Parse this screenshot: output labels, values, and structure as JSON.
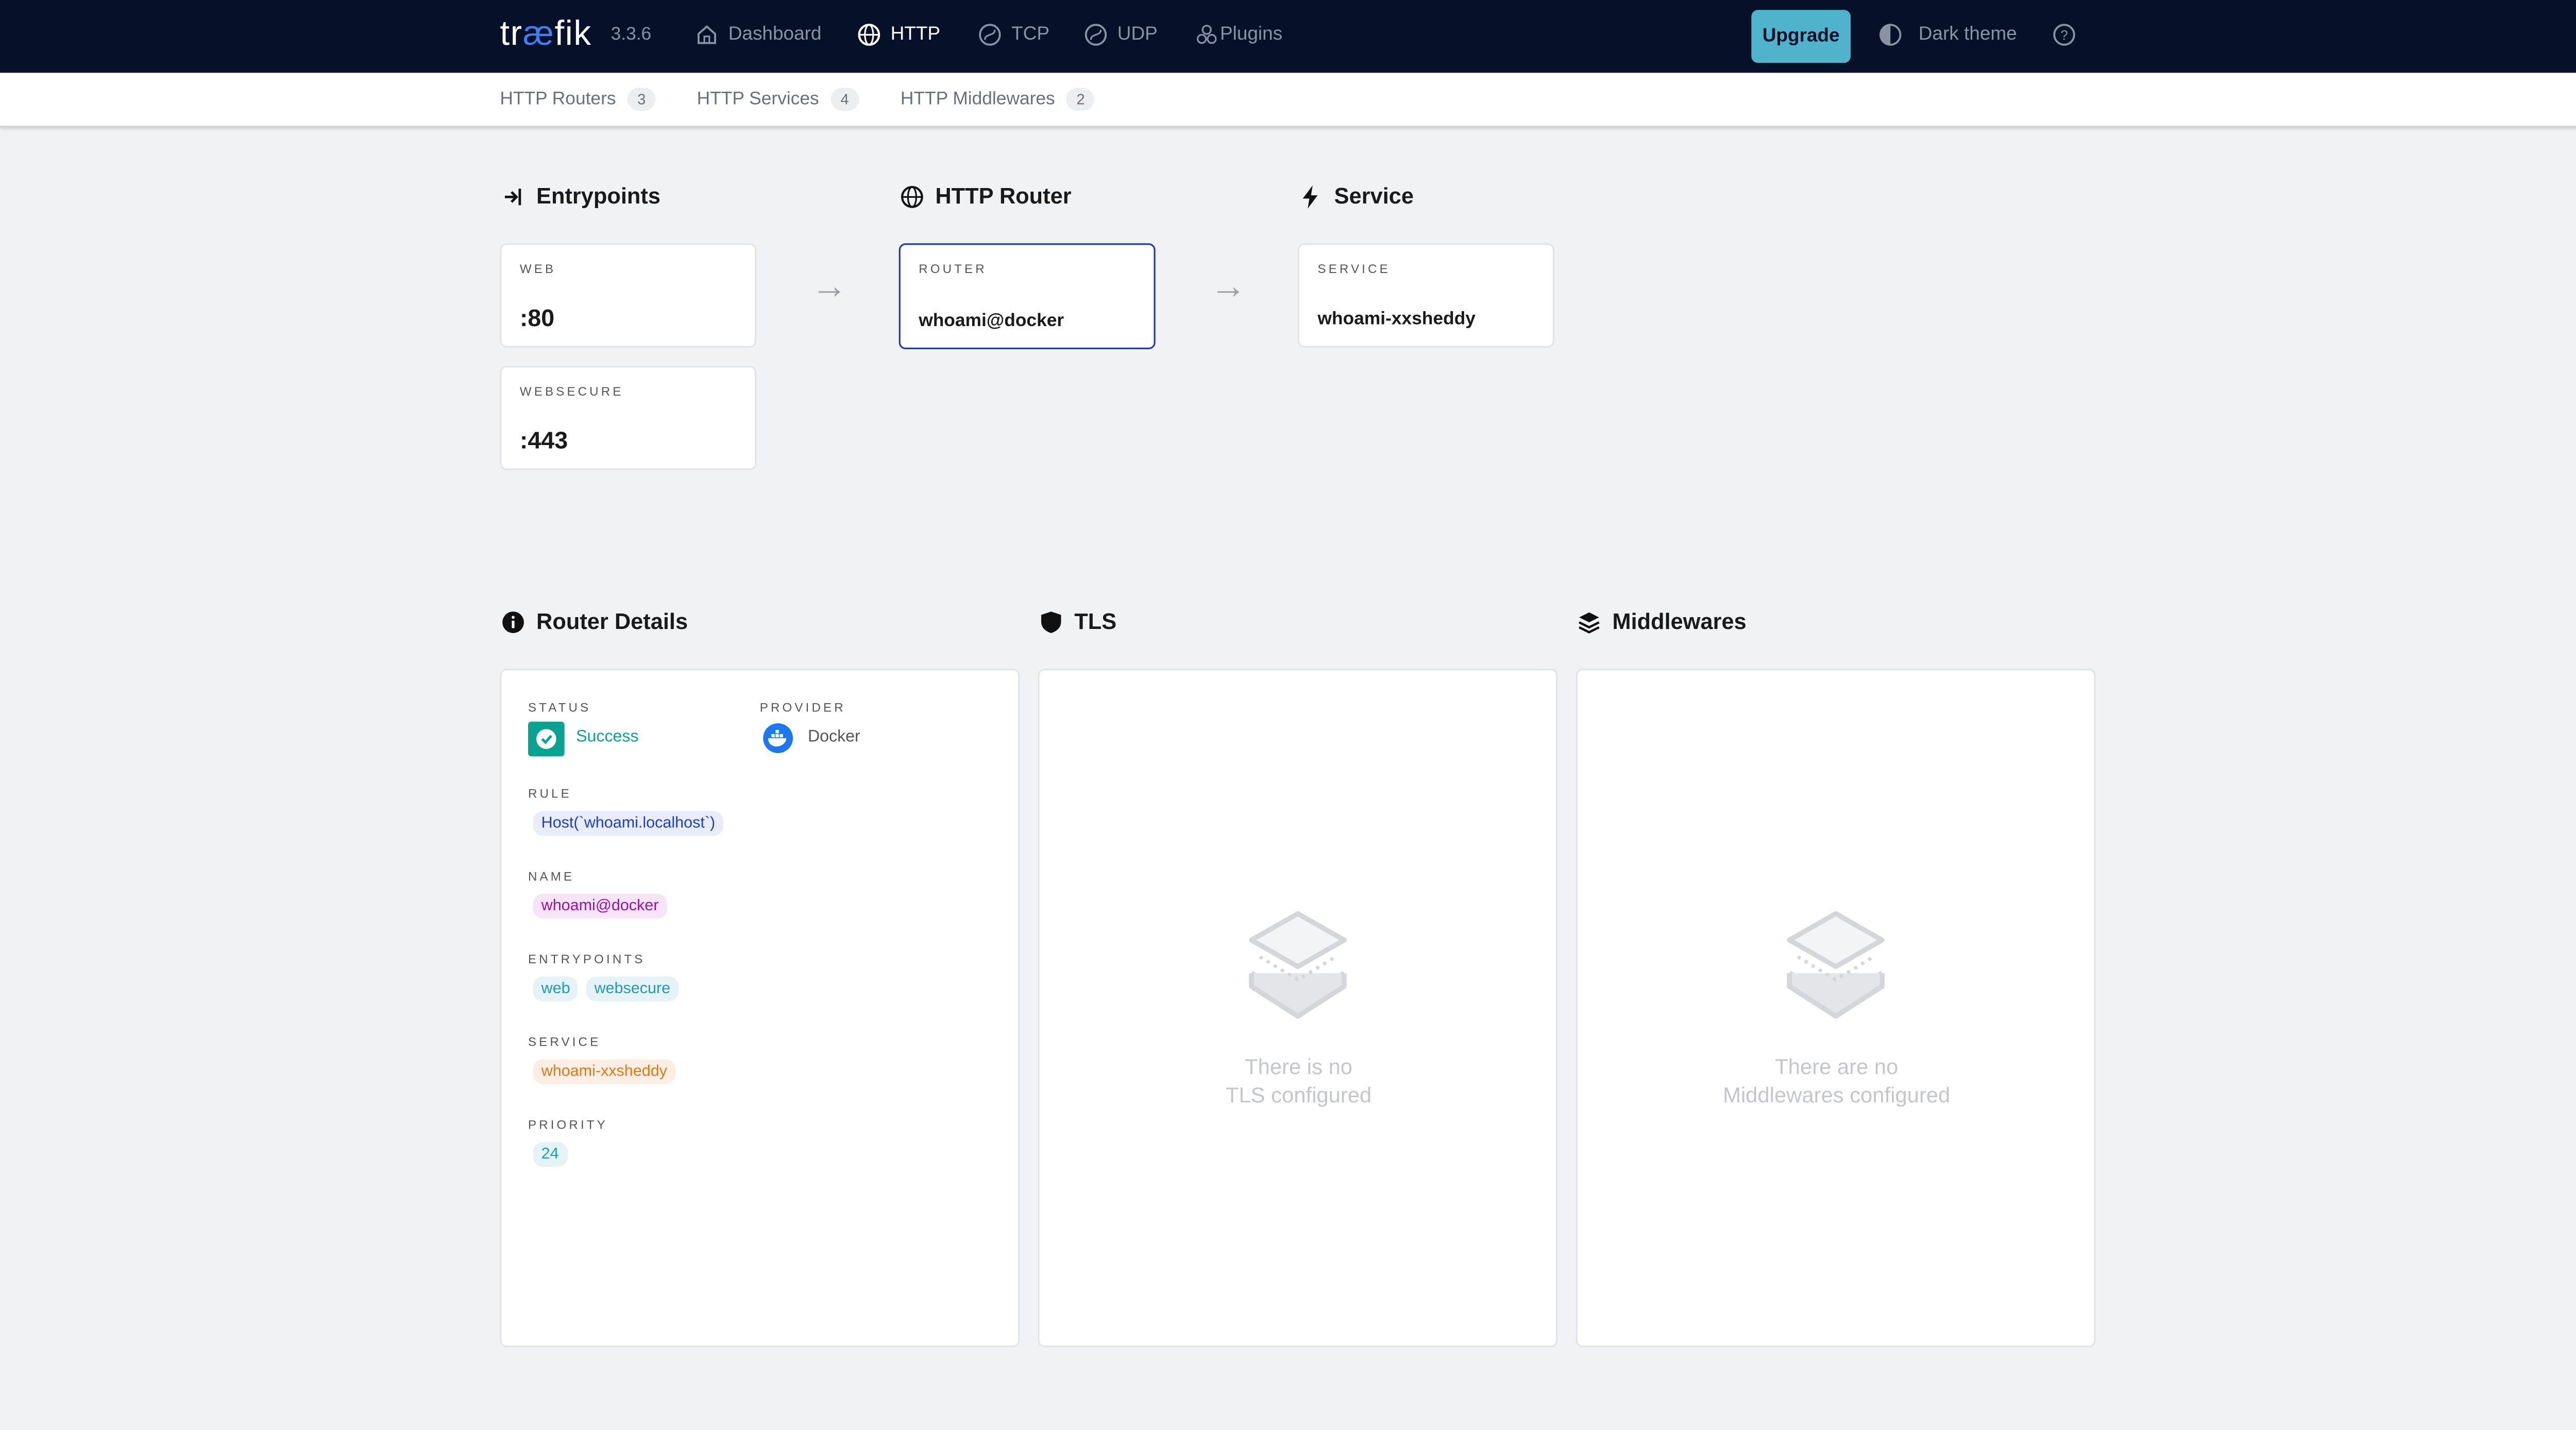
{
  "header": {
    "logo": "træfik",
    "version": "3.3.6",
    "nav": [
      {
        "label": "Dashboard",
        "icon": "home-icon"
      },
      {
        "label": "HTTP",
        "icon": "globe-icon",
        "active": true
      },
      {
        "label": "TCP",
        "icon": "tcp-icon"
      },
      {
        "label": "UDP",
        "icon": "udp-icon"
      },
      {
        "label": "Plugins",
        "icon": "plugins-icon"
      }
    ],
    "upgrade": "Upgrade",
    "theme": "Dark theme",
    "accent": "#4fb3cc",
    "bg": "#061029"
  },
  "subnav": [
    {
      "label": "HTTP Routers",
      "count": "3"
    },
    {
      "label": "HTTP Services",
      "count": "4"
    },
    {
      "label": "HTTP Middlewares",
      "count": "2"
    }
  ],
  "flow": {
    "entrypoints_title": "Entrypoints",
    "router_title": "HTTP Router",
    "service_title": "Service",
    "entrypoints": [
      {
        "label": "WEB",
        "value": ":80"
      },
      {
        "label": "WEBSECURE",
        "value": ":443"
      }
    ],
    "router": {
      "label": "ROUTER",
      "value": "whoami@docker"
    },
    "service": {
      "label": "SERVICE",
      "value": "whoami-xxsheddy"
    }
  },
  "details": {
    "title": "Router Details",
    "status_label": "STATUS",
    "status": "Success",
    "provider_label": "PROVIDER",
    "provider": "Docker",
    "rule_label": "RULE",
    "rule": "Host(`whoami.localhost`)",
    "name_label": "NAME",
    "name": "whoami@docker",
    "entrypoints_label": "ENTRYPOINTS",
    "entrypoints": [
      "web",
      "websecure"
    ],
    "service_label": "SERVICE",
    "service": "whoami-xxsheddy",
    "priority_label": "PRIORITY",
    "priority": "24"
  },
  "tls": {
    "title": "TLS",
    "empty_1": "There is no",
    "empty_2": "TLS configured"
  },
  "middlewares": {
    "title": "Middlewares",
    "empty_1": "There are no",
    "empty_2": "Middlewares configured"
  }
}
